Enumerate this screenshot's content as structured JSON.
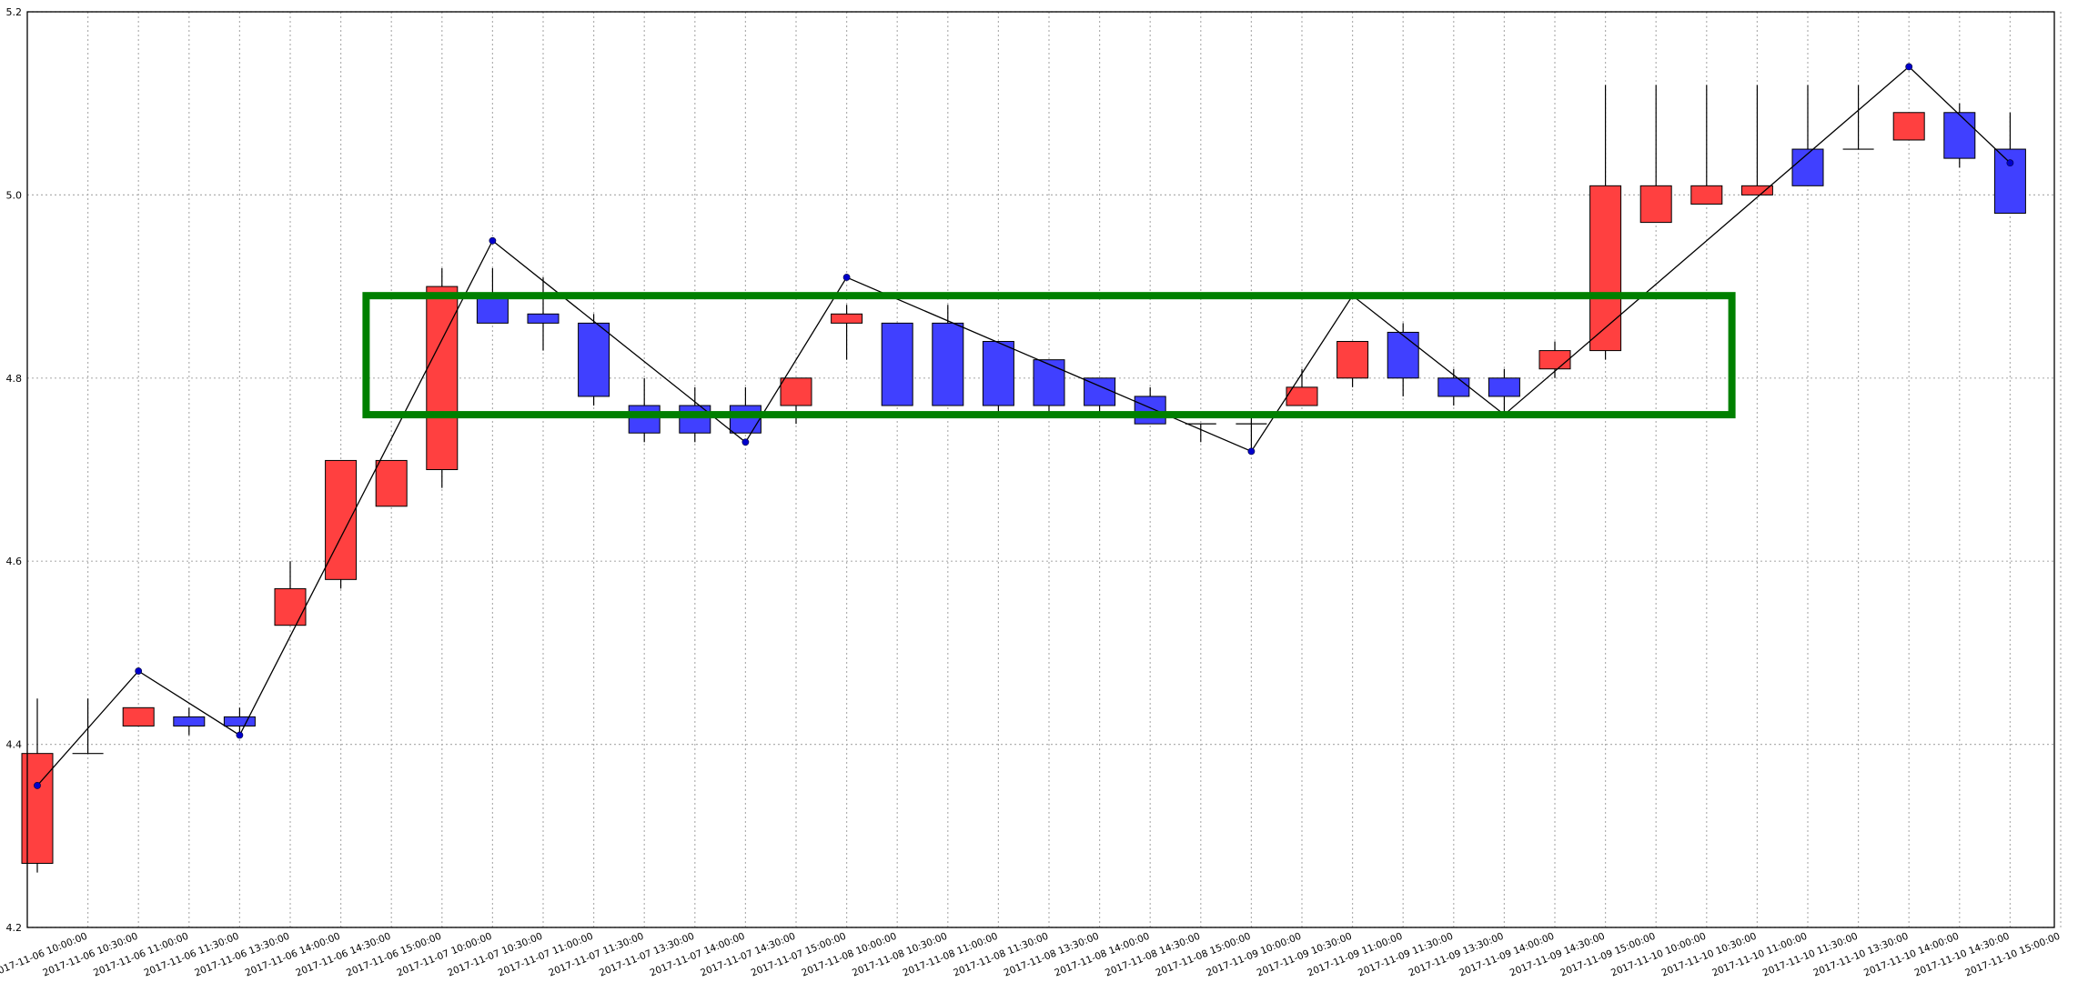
{
  "chart_data": {
    "type": "candlestick",
    "title": "",
    "xlabel": "",
    "ylabel": "",
    "ylim": [
      4.2,
      5.2
    ],
    "yticks": [
      "4.2",
      "4.4",
      "4.6",
      "4.8",
      "5.0",
      "5.2"
    ],
    "grid": true,
    "colors": {
      "up": "#ff4040",
      "down": "#4040ff",
      "line": "#000000",
      "highlight": "#008000"
    },
    "x_tick_labels": [
      "2017-11-06 10:00:00",
      "2017-11-06 10:30:00",
      "2017-11-06 11:00:00",
      "2017-11-06 11:30:00",
      "2017-11-06 13:30:00",
      "2017-11-06 14:00:00",
      "2017-11-06 14:30:00",
      "2017-11-06 15:00:00",
      "2017-11-07 10:00:00",
      "2017-11-07 10:30:00",
      "2017-11-07 11:00:00",
      "2017-11-07 11:30:00",
      "2017-11-07 13:30:00",
      "2017-11-07 14:00:00",
      "2017-11-07 14:30:00",
      "2017-11-07 15:00:00",
      "2017-11-08 10:00:00",
      "2017-11-08 10:30:00",
      "2017-11-08 11:00:00",
      "2017-11-08 11:30:00",
      "2017-11-08 13:30:00",
      "2017-11-08 14:00:00",
      "2017-11-08 14:30:00",
      "2017-11-08 15:00:00",
      "2017-11-09 10:00:00",
      "2017-11-09 10:30:00",
      "2017-11-09 11:00:00",
      "2017-11-09 11:30:00",
      "2017-11-09 13:30:00",
      "2017-11-09 14:00:00",
      "2017-11-09 14:30:00",
      "2017-11-09 15:00:00",
      "2017-11-10 10:00:00",
      "2017-11-10 10:30:00",
      "2017-11-10 11:00:00",
      "2017-11-10 11:30:00",
      "2017-11-10 13:30:00",
      "2017-11-10 14:00:00",
      "2017-11-10 14:30:00",
      "2017-11-10 15:00:00"
    ],
    "candles": [
      {
        "o": 4.27,
        "c": 4.39,
        "h": 4.45,
        "l": 4.26
      },
      {
        "o": 4.39,
        "c": 4.39,
        "h": 4.45,
        "l": 4.39
      },
      {
        "o": 4.42,
        "c": 4.44,
        "h": 4.44,
        "l": 4.42
      },
      {
        "o": 4.43,
        "c": 4.42,
        "h": 4.44,
        "l": 4.41
      },
      {
        "o": 4.43,
        "c": 4.42,
        "h": 4.44,
        "l": 4.41
      },
      {
        "o": 4.53,
        "c": 4.57,
        "h": 4.6,
        "l": 4.53
      },
      {
        "o": 4.58,
        "c": 4.71,
        "h": 4.71,
        "l": 4.57
      },
      {
        "o": 4.66,
        "c": 4.71,
        "h": 4.71,
        "l": 4.66
      },
      {
        "o": 4.7,
        "c": 4.9,
        "h": 4.92,
        "l": 4.68
      },
      {
        "o": 4.89,
        "c": 4.86,
        "h": 4.92,
        "l": 4.86
      },
      {
        "o": 4.87,
        "c": 4.86,
        "h": 4.91,
        "l": 4.83
      },
      {
        "o": 4.86,
        "c": 4.78,
        "h": 4.87,
        "l": 4.77
      },
      {
        "o": 4.77,
        "c": 4.74,
        "h": 4.8,
        "l": 4.73
      },
      {
        "o": 4.77,
        "c": 4.74,
        "h": 4.79,
        "l": 4.73
      },
      {
        "o": 4.77,
        "c": 4.74,
        "h": 4.79,
        "l": 4.74
      },
      {
        "o": 4.77,
        "c": 4.8,
        "h": 4.8,
        "l": 4.75
      },
      {
        "o": 4.86,
        "c": 4.87,
        "h": 4.88,
        "l": 4.82
      },
      {
        "o": 4.86,
        "c": 4.77,
        "h": 4.86,
        "l": 4.77
      },
      {
        "o": 4.86,
        "c": 4.77,
        "h": 4.88,
        "l": 4.77
      },
      {
        "o": 4.84,
        "c": 4.77,
        "h": 4.84,
        "l": 4.76
      },
      {
        "o": 4.82,
        "c": 4.77,
        "h": 4.82,
        "l": 4.76
      },
      {
        "o": 4.8,
        "c": 4.77,
        "h": 4.8,
        "l": 4.76
      },
      {
        "o": 4.78,
        "c": 4.75,
        "h": 4.79,
        "l": 4.75
      },
      {
        "o": 4.75,
        "c": 4.75,
        "h": 4.75,
        "l": 4.73
      },
      {
        "o": 4.75,
        "c": 4.75,
        "h": 4.76,
        "l": 4.72
      },
      {
        "o": 4.77,
        "c": 4.79,
        "h": 4.81,
        "l": 4.77
      },
      {
        "o": 4.8,
        "c": 4.84,
        "h": 4.84,
        "l": 4.79
      },
      {
        "o": 4.85,
        "c": 4.8,
        "h": 4.86,
        "l": 4.78
      },
      {
        "o": 4.8,
        "c": 4.78,
        "h": 4.81,
        "l": 4.77
      },
      {
        "o": 4.8,
        "c": 4.78,
        "h": 4.81,
        "l": 4.76
      },
      {
        "o": 4.81,
        "c": 4.83,
        "h": 4.84,
        "l": 4.8
      },
      {
        "o": 4.83,
        "c": 5.01,
        "h": 5.12,
        "l": 4.82
      },
      {
        "o": 4.97,
        "c": 5.01,
        "h": 5.12,
        "l": 4.97
      },
      {
        "o": 4.99,
        "c": 5.01,
        "h": 5.12,
        "l": 4.99
      },
      {
        "o": 5.0,
        "c": 5.01,
        "h": 5.12,
        "l": 5.0
      },
      {
        "o": 5.05,
        "c": 5.01,
        "h": 5.12,
        "l": 5.01
      },
      {
        "o": 5.05,
        "c": 5.05,
        "h": 5.12,
        "l": 5.05
      },
      {
        "o": 5.06,
        "c": 5.09,
        "h": 5.09,
        "l": 5.06
      },
      {
        "o": 5.09,
        "c": 5.04,
        "h": 5.1,
        "l": 5.03
      },
      {
        "o": 5.05,
        "c": 4.98,
        "h": 5.09,
        "l": 4.98
      }
    ],
    "zigzag_line": [
      {
        "i": 0,
        "y": 4.355
      },
      {
        "i": 2,
        "y": 4.48
      },
      {
        "i": 4,
        "y": 4.41
      },
      {
        "i": 9,
        "y": 4.95
      },
      {
        "i": 14,
        "y": 4.73
      },
      {
        "i": 16,
        "y": 4.91
      },
      {
        "i": 24,
        "y": 4.72
      },
      {
        "i": 26,
        "y": 4.89
      },
      {
        "i": 29,
        "y": 4.76
      },
      {
        "i": 37,
        "y": 5.14
      },
      {
        "i": 39,
        "y": 5.035
      }
    ],
    "highlight_box": {
      "i_start": 6.5,
      "i_end": 33.5,
      "y_low": 4.76,
      "y_high": 4.89
    }
  }
}
